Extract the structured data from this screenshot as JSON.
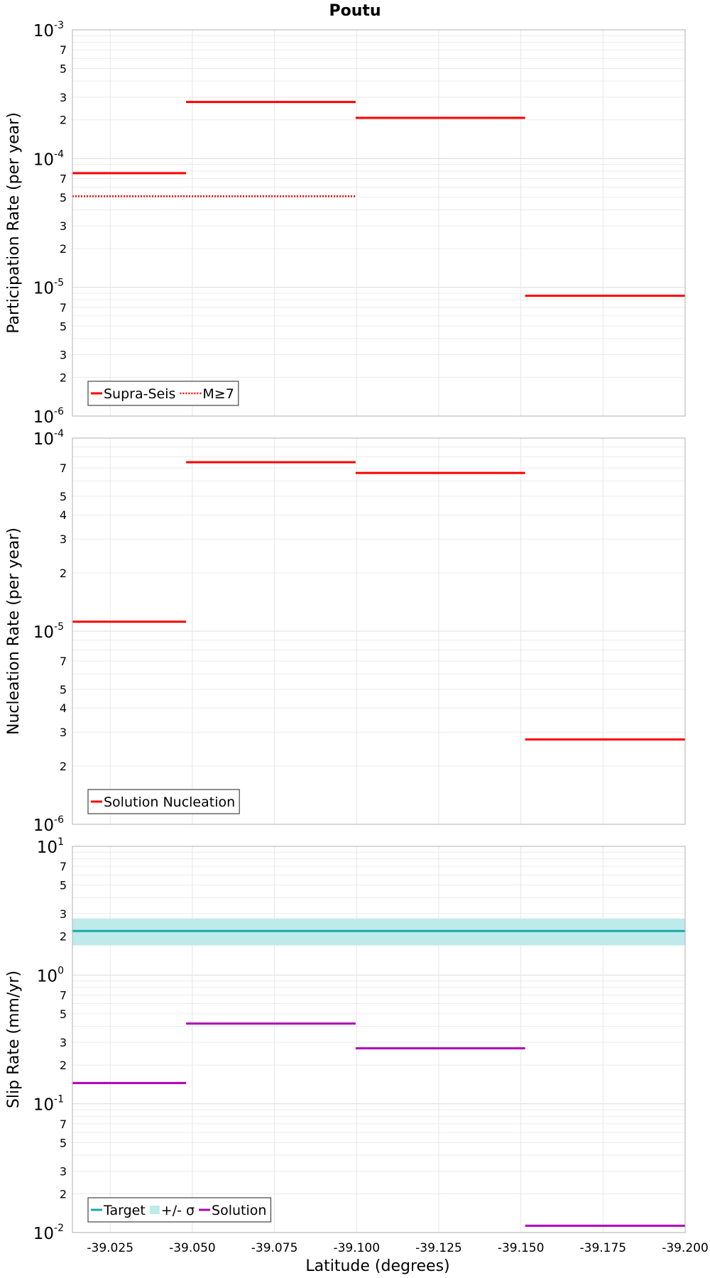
{
  "figure": {
    "title": "Poutu",
    "xlabel": "Latitude (degrees)",
    "x_ticks": [
      "-39.025",
      "-39.050",
      "-39.075",
      "-39.100",
      "-39.125",
      "-39.150",
      "-39.175",
      "-39.200"
    ]
  },
  "chart_data": [
    {
      "type": "line",
      "ylabel": "Participation Rate (per year)",
      "yscale": "log",
      "ylim": [
        1e-06,
        0.001
      ],
      "xlim": [
        -39.0135,
        -39.2
      ],
      "x_direction": "decreasing to the right",
      "grid": true,
      "legend_placement": "bottom-left",
      "series": [
        {
          "name": "Supra-Seis",
          "style": "solid",
          "color": "#ff0000",
          "segments": [
            {
              "x": [
                -39.0135,
                -39.0481
              ],
              "y": 7.7e-05
            },
            {
              "x": [
                -39.0481,
                -39.0997
              ],
              "y": 0.000275
            },
            {
              "x": [
                -39.0997,
                -39.1513
              ],
              "y": 0.000207
            },
            {
              "x": [
                -39.1513,
                -39.2
              ],
              "y": 8.6e-06
            }
          ]
        },
        {
          "name": "M≥7",
          "style": "dotted",
          "color": "#ff0000",
          "segments": [
            {
              "x": [
                -39.0135,
                -39.0997
              ],
              "y": 5.1e-05
            }
          ]
        }
      ]
    },
    {
      "type": "line",
      "ylabel": "Nucleation Rate (per year)",
      "yscale": "log",
      "ylim": [
        1e-06,
        0.0001
      ],
      "xlim": [
        -39.0135,
        -39.2
      ],
      "grid": true,
      "legend_placement": "bottom-left",
      "series": [
        {
          "name": "Solution Nucleation",
          "style": "solid",
          "color": "#ff0000",
          "segments": [
            {
              "x": [
                -39.0135,
                -39.0481
              ],
              "y": 1.12e-05
            },
            {
              "x": [
                -39.0481,
                -39.0997
              ],
              "y": 7.5e-05
            },
            {
              "x": [
                -39.0997,
                -39.1513
              ],
              "y": 6.6e-05
            },
            {
              "x": [
                -39.1513,
                -39.2
              ],
              "y": 2.75e-06
            }
          ]
        }
      ]
    },
    {
      "type": "line",
      "ylabel": "Slip Rate (mm/yr)",
      "yscale": "log",
      "ylim": [
        0.01,
        10
      ],
      "xlim": [
        -39.0135,
        -39.2
      ],
      "grid": true,
      "legend_placement": "bottom-left",
      "series": [
        {
          "name": "Target",
          "style": "solid",
          "color": "#1aa9a9",
          "segments": [
            {
              "x": [
                -39.0135,
                -39.2
              ],
              "y": 2.2
            }
          ]
        },
        {
          "name": "+/- σ",
          "style": "band",
          "color": "#bfeaea",
          "band": [
            1.7,
            2.75
          ]
        },
        {
          "name": "Solution",
          "style": "solid",
          "color": "#b000b8",
          "segments": [
            {
              "x": [
                -39.0135,
                -39.0481
              ],
              "y": 0.145
            },
            {
              "x": [
                -39.0481,
                -39.0997
              ],
              "y": 0.42
            },
            {
              "x": [
                -39.0997,
                -39.1513
              ],
              "y": 0.27
            },
            {
              "x": [
                -39.1513,
                -39.2
              ],
              "y": 0.0113
            }
          ]
        }
      ]
    }
  ]
}
